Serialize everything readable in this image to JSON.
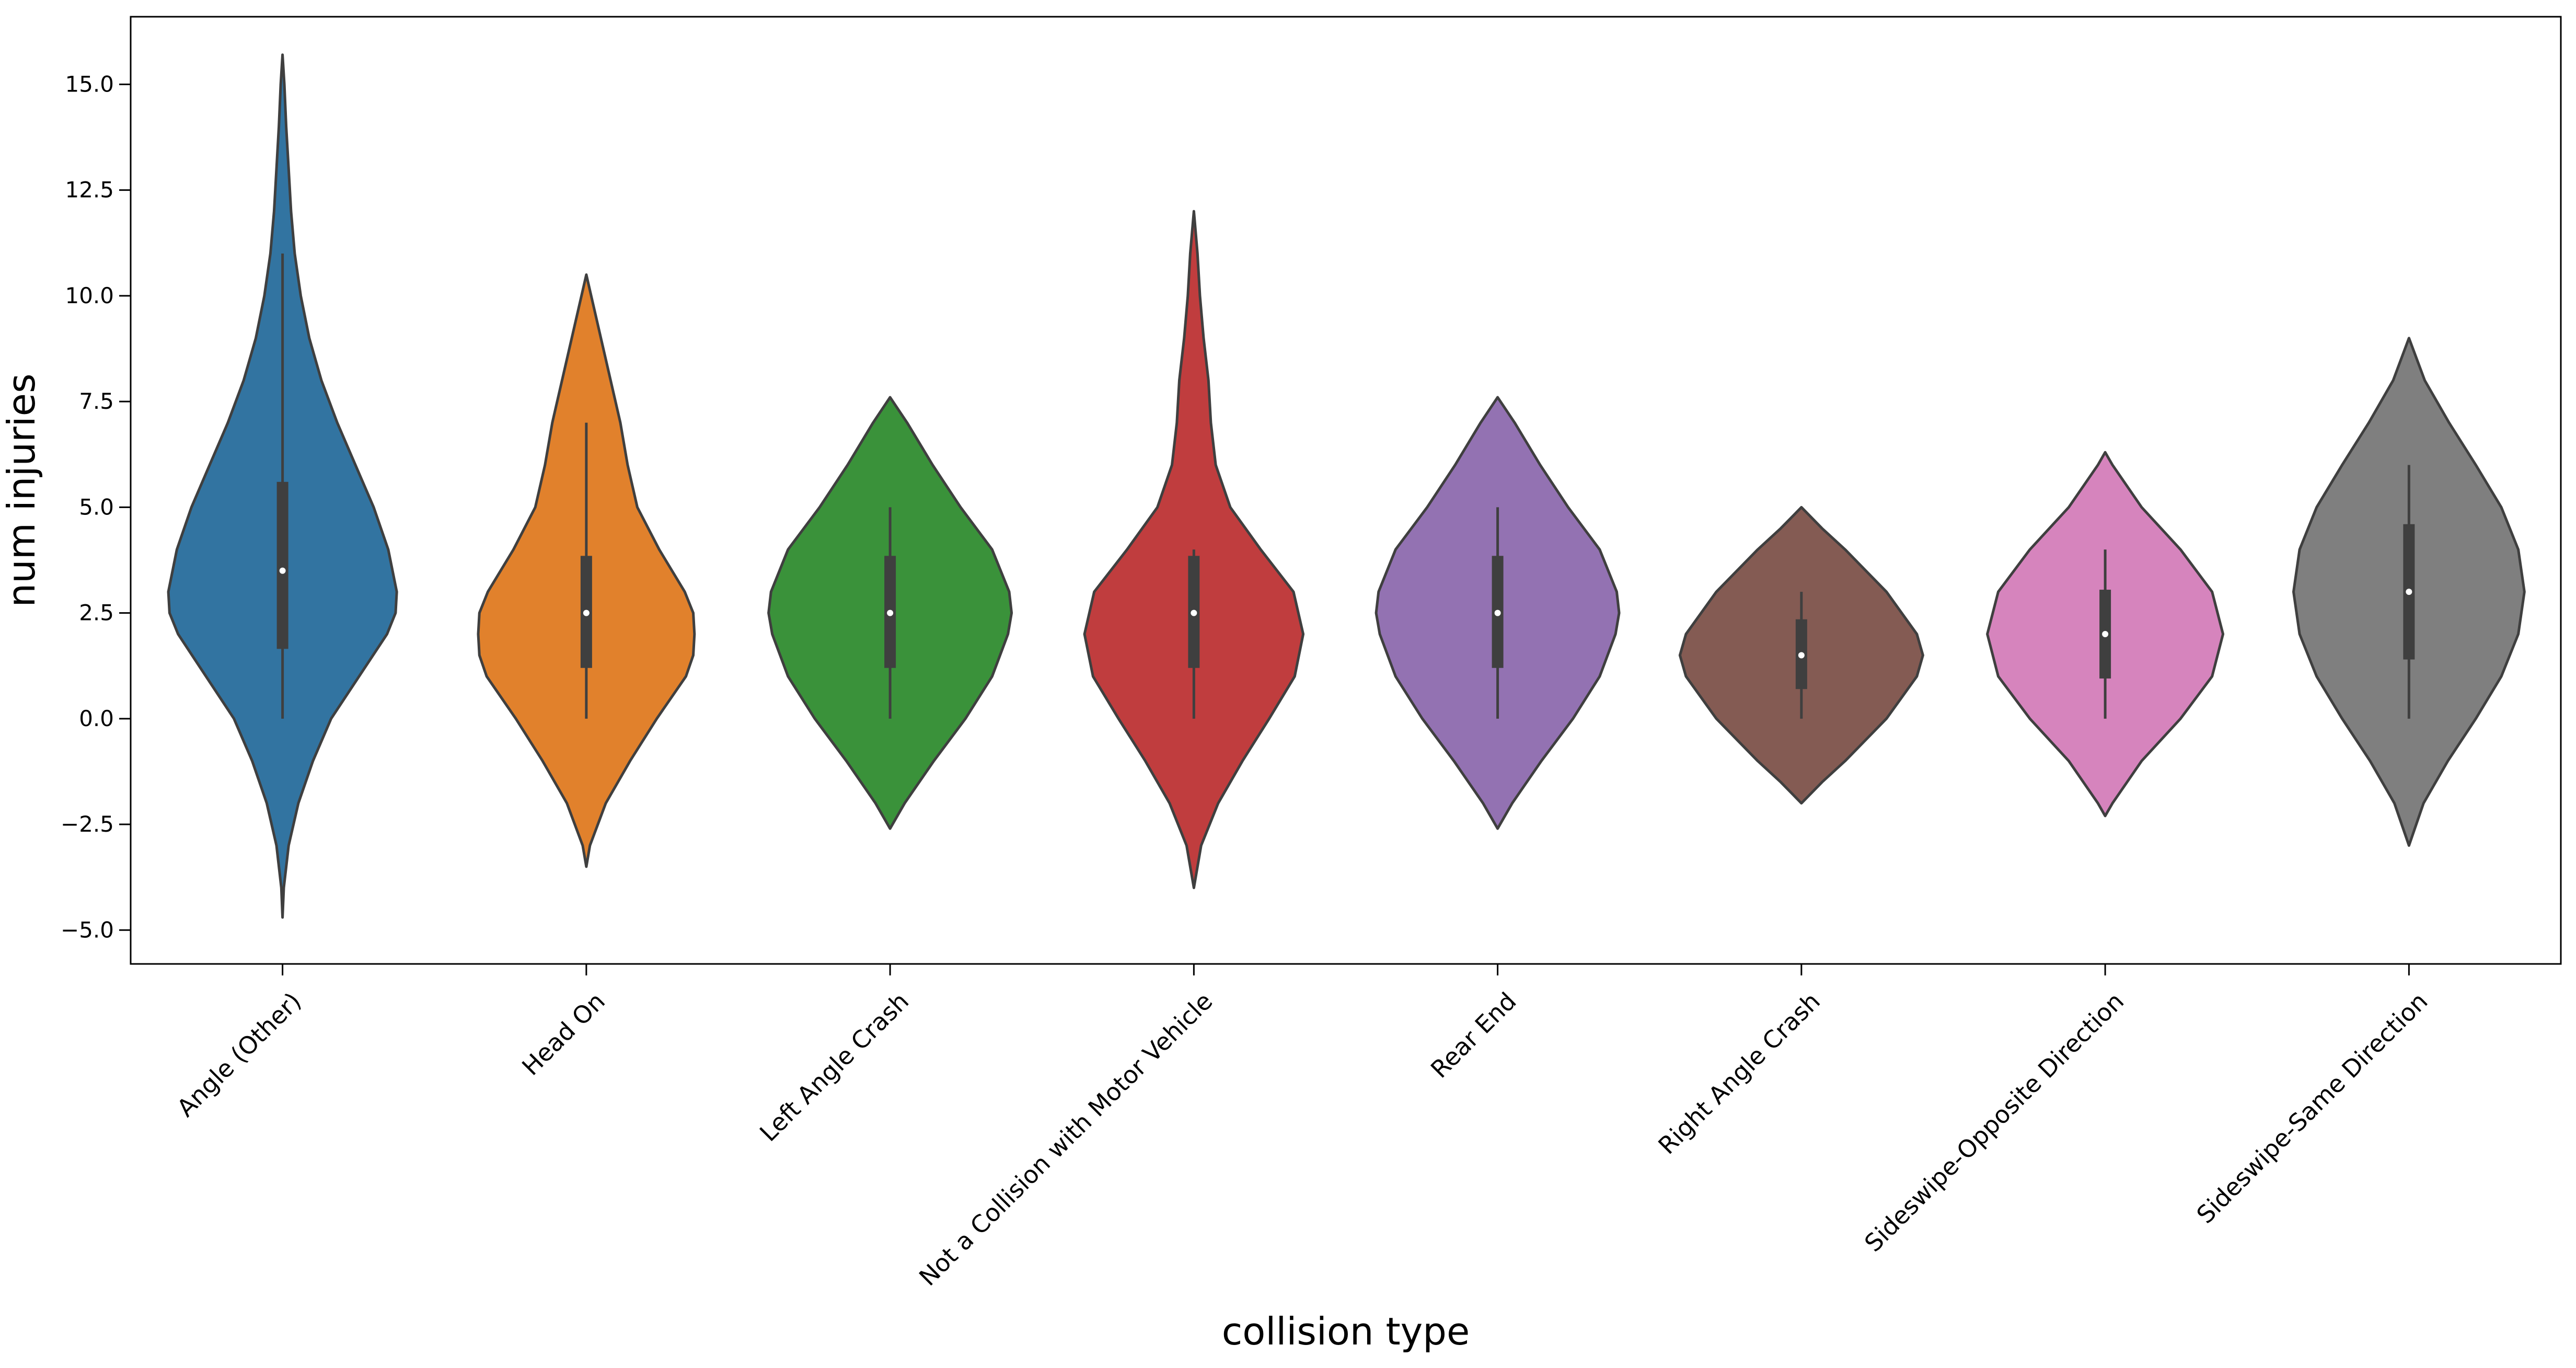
{
  "chart_data": {
    "type": "violin",
    "xlabel": "collision type",
    "ylabel": "num injuries",
    "ylim": [
      -5.8,
      16.6
    ],
    "yticks": [
      -5.0,
      -2.5,
      0.0,
      2.5,
      5.0,
      7.5,
      10.0,
      12.5,
      15.0
    ],
    "ytick_labels": [
      "−5.0",
      "−2.5",
      "0.0",
      "2.5",
      "5.0",
      "7.5",
      "10.0",
      "12.5",
      "15.0"
    ],
    "grid": false,
    "legend": "none",
    "categories": [
      "Angle (Other)",
      "Head On",
      "Left Angle Crash",
      "Not a Collision with Motor Vehicle",
      "Rear End",
      "Right Angle Crash",
      "Sideswipe-Opposite Direction",
      "Sideswipe-Same Direction"
    ],
    "colors": [
      "#3274a1",
      "#e1812c",
      "#3a923a",
      "#c03d3e",
      "#9372b2",
      "#845b53",
      "#d684bd",
      "#7f7f7f"
    ],
    "violins": [
      {
        "min": 0,
        "q1": 1.65,
        "median": 3.5,
        "q3": 5.6,
        "max": 11.0,
        "profile": [
          [
            -4.7,
            0
          ],
          [
            -4.0,
            0.01
          ],
          [
            -3.0,
            0.05
          ],
          [
            -2.0,
            0.13
          ],
          [
            -1.0,
            0.25
          ],
          [
            0.0,
            0.4
          ],
          [
            1.0,
            0.63
          ],
          [
            2.0,
            0.86
          ],
          [
            2.5,
            0.93
          ],
          [
            3.0,
            0.94
          ],
          [
            4.0,
            0.87
          ],
          [
            5.0,
            0.75
          ],
          [
            6.0,
            0.6
          ],
          [
            7.0,
            0.45
          ],
          [
            8.0,
            0.32
          ],
          [
            9.0,
            0.22
          ],
          [
            10.0,
            0.15
          ],
          [
            11.0,
            0.1
          ],
          [
            12.0,
            0.07
          ],
          [
            13.0,
            0.05
          ],
          [
            14.0,
            0.03
          ],
          [
            15.0,
            0.015
          ],
          [
            15.7,
            0
          ]
        ]
      },
      {
        "min": 0,
        "q1": 1.2,
        "median": 2.5,
        "q3": 3.85,
        "max": 7.0,
        "profile": [
          [
            -3.5,
            0
          ],
          [
            -3.0,
            0.03
          ],
          [
            -2.0,
            0.16
          ],
          [
            -1.0,
            0.36
          ],
          [
            0.0,
            0.58
          ],
          [
            1.0,
            0.82
          ],
          [
            1.5,
            0.88
          ],
          [
            2.0,
            0.89
          ],
          [
            2.5,
            0.88
          ],
          [
            3.0,
            0.81
          ],
          [
            4.0,
            0.6
          ],
          [
            5.0,
            0.42
          ],
          [
            6.0,
            0.34
          ],
          [
            7.0,
            0.28
          ],
          [
            8.0,
            0.2
          ],
          [
            9.0,
            0.12
          ],
          [
            10.0,
            0.04
          ],
          [
            10.5,
            0
          ]
        ]
      },
      {
        "min": 0,
        "q1": 1.2,
        "median": 2.5,
        "q3": 3.85,
        "max": 5.0,
        "profile": [
          [
            -2.6,
            0
          ],
          [
            -2.0,
            0.12
          ],
          [
            -1.0,
            0.36
          ],
          [
            0.0,
            0.62
          ],
          [
            1.0,
            0.84
          ],
          [
            2.0,
            0.97
          ],
          [
            2.5,
            1.0
          ],
          [
            3.0,
            0.98
          ],
          [
            4.0,
            0.84
          ],
          [
            5.0,
            0.58
          ],
          [
            6.0,
            0.35
          ],
          [
            7.0,
            0.14
          ],
          [
            7.6,
            0
          ]
        ]
      },
      {
        "min": 0,
        "q1": 1.2,
        "median": 2.5,
        "q3": 3.85,
        "max": 4.0,
        "profile": [
          [
            -4.0,
            0
          ],
          [
            -3.0,
            0.06
          ],
          [
            -2.0,
            0.2
          ],
          [
            -1.0,
            0.4
          ],
          [
            0.0,
            0.62
          ],
          [
            1.0,
            0.83
          ],
          [
            2.0,
            0.9
          ],
          [
            3.0,
            0.82
          ],
          [
            4.0,
            0.55
          ],
          [
            5.0,
            0.3
          ],
          [
            6.0,
            0.18
          ],
          [
            7.0,
            0.14
          ],
          [
            8.0,
            0.12
          ],
          [
            9.0,
            0.08
          ],
          [
            10.0,
            0.05
          ],
          [
            11.0,
            0.03
          ],
          [
            12.0,
            0
          ]
        ]
      },
      {
        "min": 0,
        "q1": 1.2,
        "median": 2.5,
        "q3": 3.85,
        "max": 5.0,
        "profile": [
          [
            -2.6,
            0
          ],
          [
            -2.0,
            0.12
          ],
          [
            -1.0,
            0.36
          ],
          [
            0.0,
            0.62
          ],
          [
            1.0,
            0.84
          ],
          [
            2.0,
            0.97
          ],
          [
            2.5,
            1.0
          ],
          [
            3.0,
            0.98
          ],
          [
            4.0,
            0.84
          ],
          [
            5.0,
            0.58
          ],
          [
            6.0,
            0.35
          ],
          [
            7.0,
            0.14
          ],
          [
            7.6,
            0
          ]
        ]
      },
      {
        "min": 0,
        "q1": 0.7,
        "median": 1.5,
        "q3": 2.35,
        "max": 3.0,
        "profile": [
          [
            -2.0,
            0
          ],
          [
            -1.5,
            0.17
          ],
          [
            -1.0,
            0.36
          ],
          [
            0.0,
            0.7
          ],
          [
            1.0,
            0.95
          ],
          [
            1.5,
            1.0
          ],
          [
            2.0,
            0.95
          ],
          [
            3.0,
            0.7
          ],
          [
            4.0,
            0.36
          ],
          [
            4.5,
            0.17
          ],
          [
            5.0,
            0
          ]
        ]
      },
      {
        "min": 0,
        "q1": 0.95,
        "median": 2.0,
        "q3": 3.05,
        "max": 4.0,
        "profile": [
          [
            -2.3,
            0
          ],
          [
            -2.0,
            0.06
          ],
          [
            -1.0,
            0.3
          ],
          [
            0.0,
            0.62
          ],
          [
            1.0,
            0.88
          ],
          [
            2.0,
            0.97
          ],
          [
            3.0,
            0.88
          ],
          [
            4.0,
            0.62
          ],
          [
            5.0,
            0.3
          ],
          [
            6.0,
            0.06
          ],
          [
            6.3,
            0
          ]
        ]
      },
      {
        "min": 0,
        "q1": 1.4,
        "median": 3.0,
        "q3": 4.6,
        "max": 6.0,
        "profile": [
          [
            -3.0,
            0
          ],
          [
            -2.0,
            0.12
          ],
          [
            -1.0,
            0.32
          ],
          [
            0.0,
            0.55
          ],
          [
            1.0,
            0.76
          ],
          [
            2.0,
            0.9
          ],
          [
            3.0,
            0.95
          ],
          [
            4.0,
            0.9
          ],
          [
            5.0,
            0.76
          ],
          [
            6.0,
            0.55
          ],
          [
            7.0,
            0.33
          ],
          [
            8.0,
            0.13
          ],
          [
            9.0,
            0
          ]
        ]
      }
    ]
  }
}
